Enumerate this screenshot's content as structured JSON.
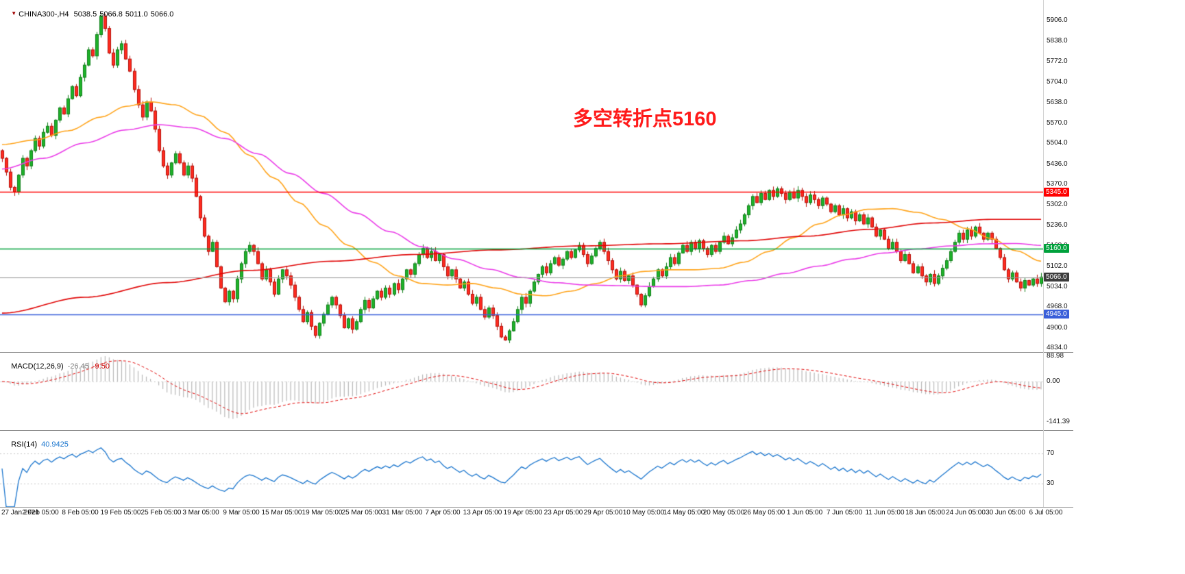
{
  "window": {
    "bg": "#ffffff"
  },
  "header": {
    "marker": "▼",
    "symbol": "CHINA300-,H4",
    "open": "5038.5",
    "high": "5066.8",
    "low": "5011.0",
    "close": "5066.0"
  },
  "annotation": {
    "text": "多空转折点5160",
    "color": "#ff1a1a"
  },
  "macd": {
    "name": "MACD(12,26,9)",
    "value_main": "-26.45",
    "value_signal": "-9.50",
    "axis_values": [
      88.98,
      0.0,
      -141.39
    ],
    "axis_labels": [
      "88.98",
      "0.00",
      "-141.39"
    ],
    "histogram_color": "#b8b8b8",
    "signal_color": "#e00000"
  },
  "rsi": {
    "name": "RSI(14)",
    "value": "40.9425",
    "levels": [
      70,
      30
    ],
    "level_labels": [
      "70",
      "30"
    ],
    "line_color": "#1874cd",
    "level_line_color": "#c4c4c4"
  },
  "chart_data": {
    "type": "candlestick",
    "title": "CHINA300-,H4",
    "ohlc_display": {
      "open": 5038.5,
      "high": 5066.8,
      "low": 5011.0,
      "close": 5066.0
    },
    "x_labels": [
      "27 Jan 2021",
      "2 Feb 05:00",
      "8 Feb 05:00",
      "19 Feb 05:00",
      "25 Feb 05:00",
      "3 Mar 05:00",
      "9 Mar 05:00",
      "15 Mar 05:00",
      "19 Mar 05:00",
      "25 Mar 05:00",
      "31 Mar 05:00",
      "7 Apr 05:00",
      "13 Apr 05:00",
      "19 Apr 05:00",
      "23 Apr 05:00",
      "29 Apr 05:00",
      "10 May 05:00",
      "14 May 05:00",
      "20 May 05:00",
      "26 May 05:00",
      "1 Jun 05:00",
      "7 Jun 05:00",
      "11 Jun 05:00",
      "18 Jun 05:00",
      "24 Jun 05:00",
      "30 Jun 05:00",
      "6 Jul 05:00"
    ],
    "y_ticks": [
      "5906.0",
      "5838.0",
      "5772.0",
      "5704.0",
      "5638.0",
      "5570.0",
      "5504.0",
      "5436.0",
      "5370.0",
      "5302.0",
      "5236.0",
      "5168.0",
      "5102.0",
      "5034.0",
      "4968.0",
      "4900.0",
      "4834.0"
    ],
    "first_open": 5480,
    "closes": [
      5455,
      5410,
      5360,
      5345,
      5400,
      5455,
      5430,
      5480,
      5520,
      5495,
      5540,
      5560,
      5530,
      5580,
      5620,
      5600,
      5650,
      5690,
      5660,
      5720,
      5760,
      5810,
      5790,
      5860,
      5920,
      5880,
      5800,
      5760,
      5810,
      5830,
      5780,
      5740,
      5680,
      5630,
      5590,
      5640,
      5610,
      5550,
      5480,
      5430,
      5400,
      5440,
      5470,
      5440,
      5400,
      5430,
      5390,
      5330,
      5260,
      5200,
      5150,
      5180,
      5100,
      5030,
      4985,
      5020,
      4995,
      5060,
      5110,
      5150,
      5170,
      5150,
      5110,
      5060,
      5090,
      5050,
      5010,
      5060,
      5090,
      5070,
      5040,
      5000,
      4960,
      4920,
      4950,
      4905,
      4875,
      4915,
      4945,
      4975,
      5000,
      4975,
      4940,
      4900,
      4930,
      4895,
      4920,
      4960,
      4990,
      4965,
      4995,
      5020,
      5000,
      5030,
      5010,
      5045,
      5025,
      5060,
      5090,
      5075,
      5110,
      5140,
      5160,
      5130,
      5150,
      5120,
      5140,
      5100,
      5070,
      5090,
      5060,
      5030,
      5050,
      5010,
      4980,
      5000,
      4960,
      4935,
      4965,
      4940,
      4905,
      4870,
      4860,
      4890,
      4920,
      4960,
      5000,
      4980,
      5020,
      5050,
      5075,
      5100,
      5080,
      5110,
      5130,
      5105,
      5125,
      5150,
      5130,
      5155,
      5170,
      5140,
      5110,
      5135,
      5160,
      5180,
      5150,
      5120,
      5090,
      5060,
      5085,
      5055,
      5070,
      5040,
      5010,
      4975,
      5005,
      5035,
      5060,
      5090,
      5070,
      5100,
      5130,
      5110,
      5145,
      5170,
      5150,
      5180,
      5160,
      5185,
      5160,
      5140,
      5170,
      5150,
      5180,
      5200,
      5175,
      5195,
      5220,
      5240,
      5270,
      5300,
      5330,
      5310,
      5340,
      5320,
      5350,
      5330,
      5355,
      5340,
      5320,
      5345,
      5325,
      5350,
      5330,
      5310,
      5335,
      5320,
      5300,
      5325,
      5305,
      5280,
      5300,
      5270,
      5290,
      5260,
      5280,
      5250,
      5270,
      5240,
      5260,
      5230,
      5200,
      5220,
      5190,
      5160,
      5180,
      5150,
      5120,
      5140,
      5110,
      5080,
      5100,
      5070,
      5050,
      5075,
      5045,
      5070,
      5095,
      5120,
      5150,
      5180,
      5210,
      5190,
      5220,
      5200,
      5230,
      5210,
      5190,
      5210,
      5190,
      5160,
      5130,
      5090,
      5060,
      5080,
      5050,
      5030,
      5055,
      5040,
      5060,
      5045,
      5066
    ],
    "candle_up_fill": "#1fb32a",
    "candle_up_border": "#0d7d16",
    "candle_down_fill": "#ff2b20",
    "candle_down_border": "#b30f08",
    "moving_averages": [
      {
        "name": "ma-fast-orange",
        "color": "#ffa319",
        "anchors": [
          [
            0,
            5500
          ],
          [
            8,
            5515
          ],
          [
            16,
            5545
          ],
          [
            24,
            5590
          ],
          [
            30,
            5625
          ],
          [
            36,
            5640
          ],
          [
            42,
            5630
          ],
          [
            48,
            5595
          ],
          [
            54,
            5540
          ],
          [
            60,
            5465
          ],
          [
            66,
            5390
          ],
          [
            72,
            5310
          ],
          [
            78,
            5235
          ],
          [
            84,
            5170
          ],
          [
            90,
            5115
          ],
          [
            96,
            5070
          ],
          [
            102,
            5045
          ],
          [
            108,
            5040
          ],
          [
            114,
            5045
          ],
          [
            120,
            5030
          ],
          [
            126,
            5010
          ],
          [
            132,
            5005
          ],
          [
            138,
            5020
          ],
          [
            144,
            5045
          ],
          [
            150,
            5070
          ],
          [
            156,
            5085
          ],
          [
            162,
            5090
          ],
          [
            168,
            5090
          ],
          [
            174,
            5095
          ],
          [
            180,
            5115
          ],
          [
            186,
            5150
          ],
          [
            192,
            5195
          ],
          [
            198,
            5240
          ],
          [
            204,
            5270
          ],
          [
            210,
            5288
          ],
          [
            216,
            5290
          ],
          [
            222,
            5278
          ],
          [
            228,
            5255
          ],
          [
            234,
            5225
          ],
          [
            240,
            5192
          ],
          [
            246,
            5152
          ],
          [
            252,
            5118
          ]
        ]
      },
      {
        "name": "ma-medium-magenta",
        "color": "#ea3ce8",
        "anchors": [
          [
            0,
            5420
          ],
          [
            10,
            5455
          ],
          [
            20,
            5505
          ],
          [
            30,
            5548
          ],
          [
            38,
            5565
          ],
          [
            46,
            5555
          ],
          [
            54,
            5520
          ],
          [
            62,
            5470
          ],
          [
            70,
            5405
          ],
          [
            78,
            5340
          ],
          [
            86,
            5275
          ],
          [
            94,
            5215
          ],
          [
            102,
            5165
          ],
          [
            110,
            5125
          ],
          [
            118,
            5092
          ],
          [
            126,
            5065
          ],
          [
            134,
            5048
          ],
          [
            142,
            5040
          ],
          [
            150,
            5038
          ],
          [
            158,
            5035
          ],
          [
            166,
            5035
          ],
          [
            174,
            5040
          ],
          [
            182,
            5055
          ],
          [
            190,
            5078
          ],
          [
            198,
            5102
          ],
          [
            206,
            5125
          ],
          [
            214,
            5145
          ],
          [
            222,
            5158
          ],
          [
            230,
            5168
          ],
          [
            238,
            5175
          ],
          [
            246,
            5176
          ],
          [
            252,
            5170
          ]
        ]
      },
      {
        "name": "ma-slow-red",
        "color": "#e00505",
        "anchors": [
          [
            0,
            4948
          ],
          [
            20,
            5000
          ],
          [
            40,
            5048
          ],
          [
            60,
            5088
          ],
          [
            80,
            5118
          ],
          [
            100,
            5140
          ],
          [
            120,
            5155
          ],
          [
            140,
            5168
          ],
          [
            160,
            5175
          ],
          [
            180,
            5185
          ],
          [
            195,
            5200
          ],
          [
            210,
            5222
          ],
          [
            225,
            5243
          ],
          [
            240,
            5255
          ],
          [
            252,
            5255
          ]
        ]
      }
    ],
    "hlines": [
      {
        "label": "5345.0",
        "value": 5345.0,
        "color": "#ff0000"
      },
      {
        "label": "5160.0",
        "value": 5160.0,
        "color": "#00a13c"
      },
      {
        "label": "4945.0",
        "value": 4945.0,
        "color": "#3a5fd9"
      }
    ],
    "current_price": {
      "label": "5066.0",
      "value": 5066.0,
      "line_color": "#9a9a9a",
      "tag_color": "#3c3c3c"
    }
  }
}
